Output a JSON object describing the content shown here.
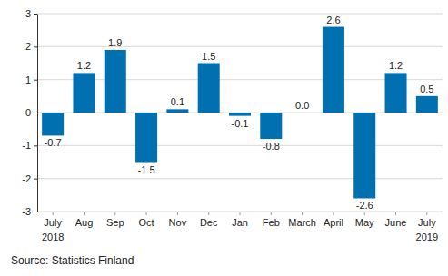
{
  "chart_data": {
    "type": "bar",
    "categories": [
      "July 2018",
      "Aug",
      "Sep",
      "Oct",
      "Nov",
      "Dec",
      "Jan",
      "Feb",
      "March",
      "April",
      "May",
      "June",
      "July 2019"
    ],
    "values": [
      -0.7,
      1.2,
      1.9,
      -1.5,
      0.1,
      1.5,
      -0.1,
      -0.8,
      0.0,
      2.6,
      -2.6,
      1.2,
      0.5
    ],
    "value_labels": [
      "-0.7",
      "1.2",
      "1.9",
      "-1.5",
      "0.1",
      "1.5",
      "-0.1",
      "-0.8",
      "0.0",
      "2.6",
      "-2.6",
      "1.2",
      "0.5"
    ],
    "data_labels": true,
    "color": "#0070b0",
    "ylim": [
      -3,
      3
    ],
    "yticks": [
      -3,
      -2,
      -1,
      0,
      1,
      2,
      3
    ],
    "grid": true,
    "source": "Source: Statistics Finland"
  }
}
